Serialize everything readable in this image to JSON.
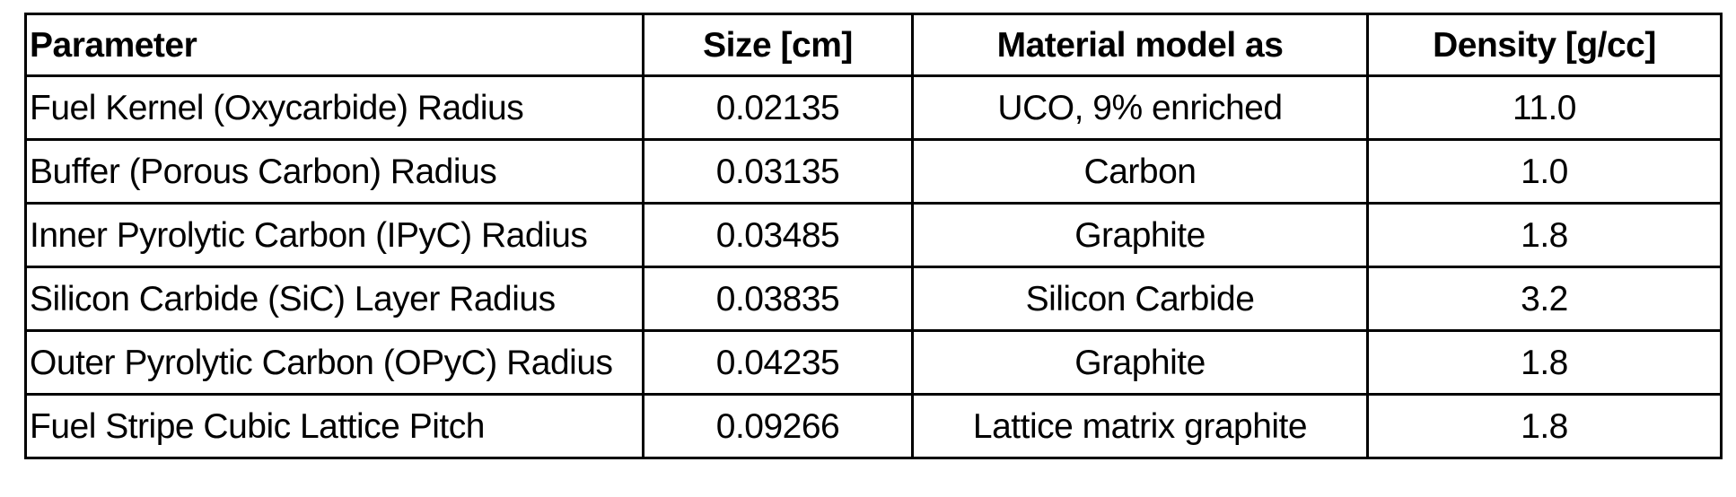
{
  "table": {
    "headers": [
      "Parameter",
      "Size [cm]",
      "Material model as",
      "Density [g/cc]"
    ],
    "rows": [
      [
        "Fuel Kernel (Oxycarbide) Radius",
        "0.02135",
        "UCO, 9% enriched",
        "11.0"
      ],
      [
        "Buffer (Porous Carbon) Radius",
        "0.03135",
        "Carbon",
        "1.0"
      ],
      [
        "Inner Pyrolytic Carbon (IPyC) Radius",
        "0.03485",
        "Graphite",
        "1.8"
      ],
      [
        "Silicon Carbide (SiC) Layer Radius",
        "0.03835",
        "Silicon Carbide",
        "3.2"
      ],
      [
        "Outer Pyrolytic Carbon (OPyC) Radius",
        "0.04235",
        "Graphite",
        "1.8"
      ],
      [
        "Fuel Stripe Cubic Lattice Pitch",
        "0.09266",
        "Lattice matrix graphite",
        "1.8"
      ]
    ]
  }
}
